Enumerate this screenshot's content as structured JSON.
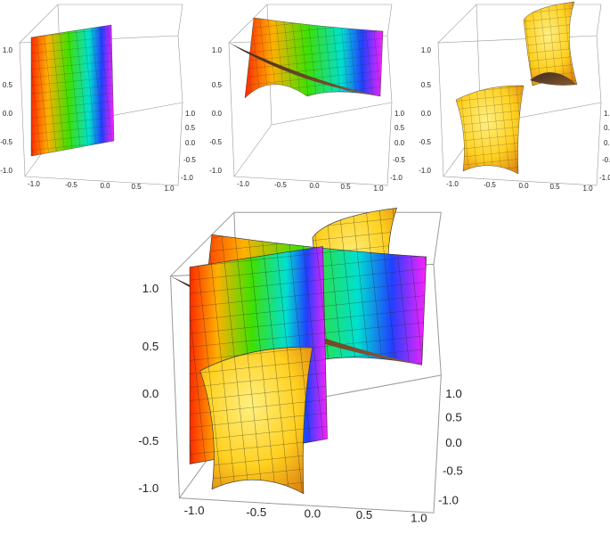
{
  "plots": [
    {
      "z_ticks": [
        "1.0",
        "0.5",
        "0.0",
        "-0.5",
        "-1.0"
      ],
      "x_ticks": [
        "-1.0",
        "-0.5",
        "0.0",
        "0.5",
        "1.0"
      ],
      "y_ticks": [
        "1.0",
        "0.5",
        "0.0",
        "-0.5",
        "-1.0"
      ]
    },
    {
      "z_ticks": [
        "1.0",
        "0.5",
        "0.0",
        "-0.5",
        "-1.0"
      ],
      "x_ticks": [
        "-1.0",
        "-0.5",
        "0.0",
        "0.5",
        "1.0"
      ],
      "y_ticks": [
        "1.0",
        "0.5",
        "0.0",
        "-0.5",
        "-1.0"
      ]
    },
    {
      "z_ticks": [
        "1.0",
        "0.5",
        "0.0",
        "-0.5",
        "-1.0"
      ],
      "x_ticks": [
        "-1.0",
        "-0.5",
        "0.0",
        "0.5",
        "1.0"
      ],
      "y_ticks": [
        "1.0",
        "0.5",
        "0.0",
        "-0.5",
        "-1.0"
      ]
    },
    {
      "z_ticks": [
        "1.0",
        "0.5",
        "0.0",
        "-0.5",
        "-1.0"
      ],
      "x_ticks": [
        "-1.0",
        "-0.5",
        "0.0",
        "0.5",
        "1.0"
      ],
      "y_ticks": [
        "1.0",
        "0.5",
        "0.0",
        "-0.5",
        "-1.0"
      ]
    }
  ]
}
